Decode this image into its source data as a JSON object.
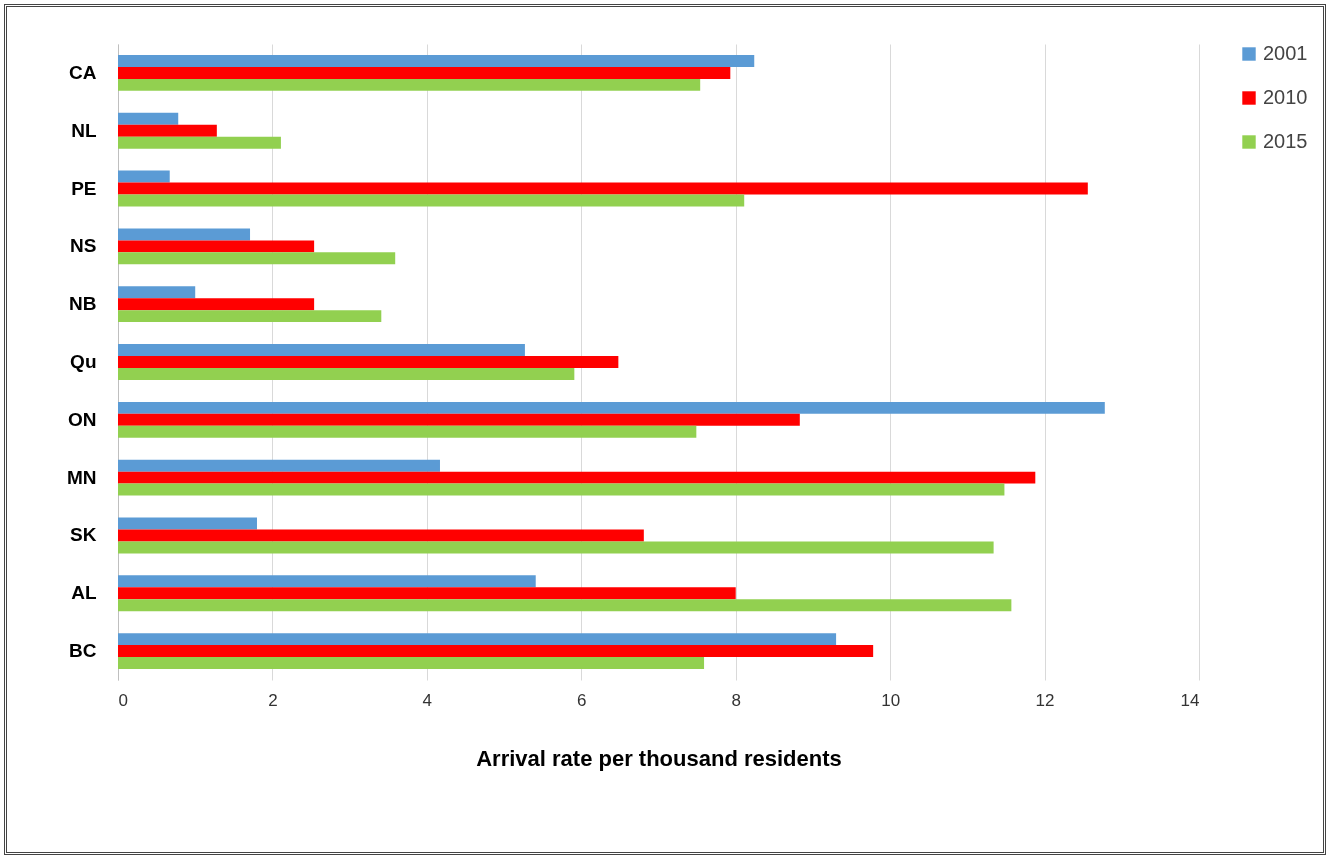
{
  "chart_data": {
    "type": "bar",
    "orientation": "horizontal",
    "xlabel": "Arrival rate per thousand residents",
    "categories": [
      "CA",
      "NL",
      "PE",
      "NS",
      "NB",
      "Qu",
      "ON",
      "MN",
      "SK",
      "AL",
      "BC"
    ],
    "series": [
      {
        "name": "2001",
        "color": "#5b9bd5",
        "values": [
          8.24,
          0.78,
          0.67,
          1.71,
          1.0,
          5.27,
          12.78,
          4.17,
          1.8,
          5.41,
          9.3
        ]
      },
      {
        "name": "2010",
        "color": "#ff0000",
        "values": [
          7.93,
          1.28,
          12.56,
          2.54,
          2.54,
          6.48,
          8.83,
          11.88,
          6.81,
          8.0,
          9.78
        ]
      },
      {
        "name": "2015",
        "color": "#92d050",
        "values": [
          7.54,
          2.11,
          8.11,
          3.59,
          3.41,
          5.91,
          7.49,
          11.48,
          11.34,
          11.57,
          7.59
        ]
      }
    ],
    "xlim": [
      0,
      14
    ],
    "xticks": [
      0,
      2,
      4,
      6,
      8,
      10,
      12,
      14
    ],
    "grid": "x",
    "legend": "right"
  }
}
